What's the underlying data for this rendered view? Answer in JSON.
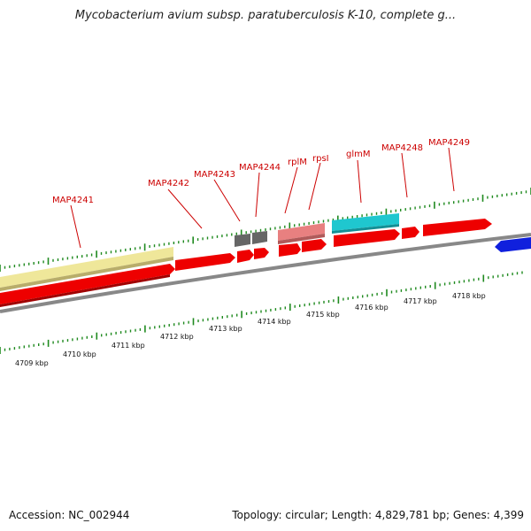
{
  "header": {
    "title": "Mycobacterium avium subsp. paratuberculosis K-10, complete g..."
  },
  "footer": {
    "accession": "Accession: NC_002944",
    "summary": "Topology: circular; Length: 4,829,781 bp; Genes: 4,399"
  },
  "colors": {
    "cds": "#ee0000",
    "pseudo_yellow": "#efe79a",
    "gray_gene": "#666666",
    "pink_gene": "#e88080",
    "cyan_gene": "#1fc7cf",
    "blue_gene": "#1020dd",
    "backbone": "#888888",
    "tick": "#1f8a1f",
    "label": "#cc0000"
  },
  "genes": {
    "map4241": "MAP4241",
    "map4242": "MAP4242",
    "map4243": "MAP4243",
    "map4244": "MAP4244",
    "rplm": "rplM",
    "rpsi": "rpsI",
    "glmm": "glmM",
    "map4248": "MAP4248",
    "map4249": "MAP4249"
  },
  "scale": {
    "kbp_labels": [
      "4709 kbp",
      "4710 kbp",
      "4711 kbp",
      "4712 kbp",
      "4713 kbp",
      "4714 kbp",
      "4715 kbp",
      "4716 kbp",
      "4717 kbp",
      "4718 kbp"
    ]
  }
}
